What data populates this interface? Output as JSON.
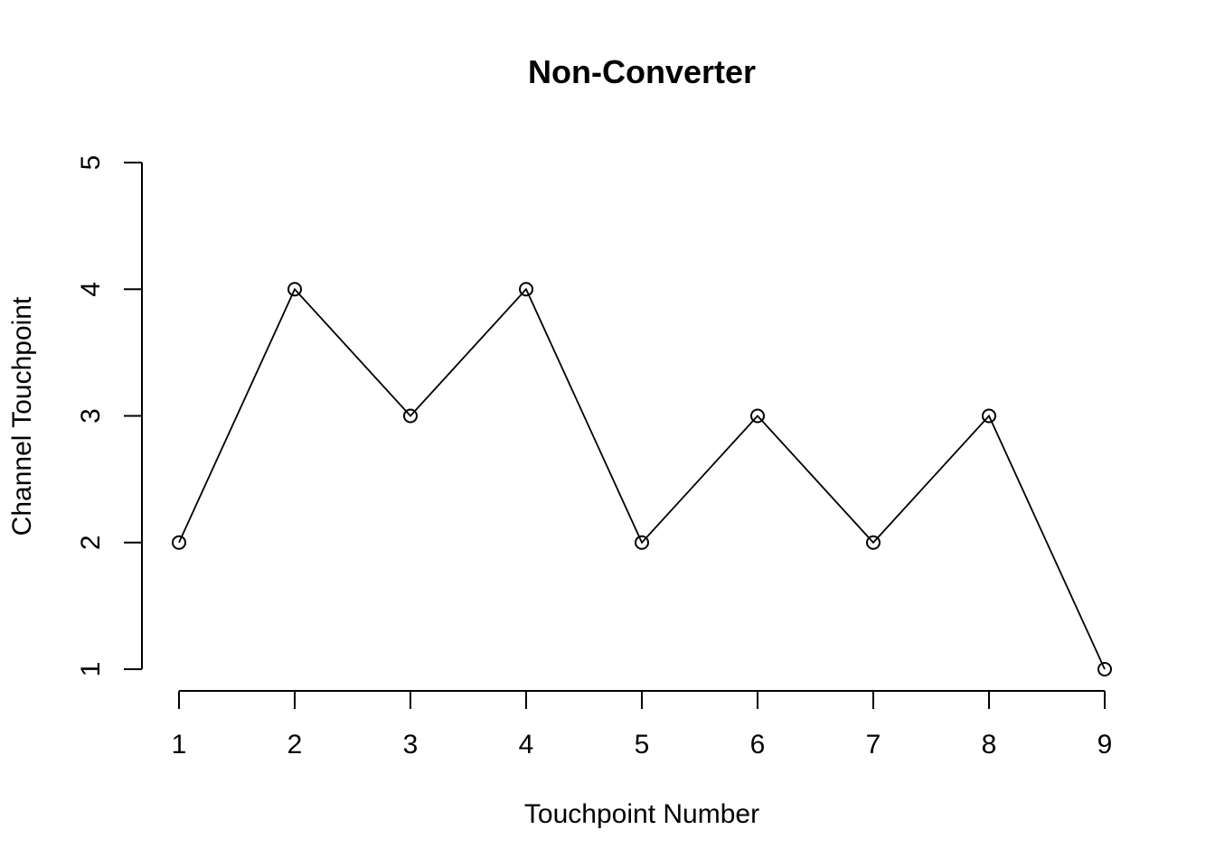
{
  "chart_data": {
    "type": "line",
    "title": "Non-Converter",
    "xlabel": "Touchpoint Number",
    "ylabel": "Channel Touchpoint",
    "x": [
      1,
      2,
      3,
      4,
      5,
      6,
      7,
      8,
      9
    ],
    "y": [
      2,
      4,
      3,
      4,
      2,
      3,
      2,
      3,
      1
    ],
    "xticks": [
      "1",
      "2",
      "3",
      "4",
      "5",
      "6",
      "7",
      "8",
      "9"
    ],
    "yticks": [
      "1",
      "2",
      "3",
      "4",
      "5"
    ],
    "xlim": [
      1,
      9
    ],
    "ylim": [
      1,
      5
    ],
    "grid": false,
    "marker": "open-circle",
    "line_color": "#000000"
  }
}
